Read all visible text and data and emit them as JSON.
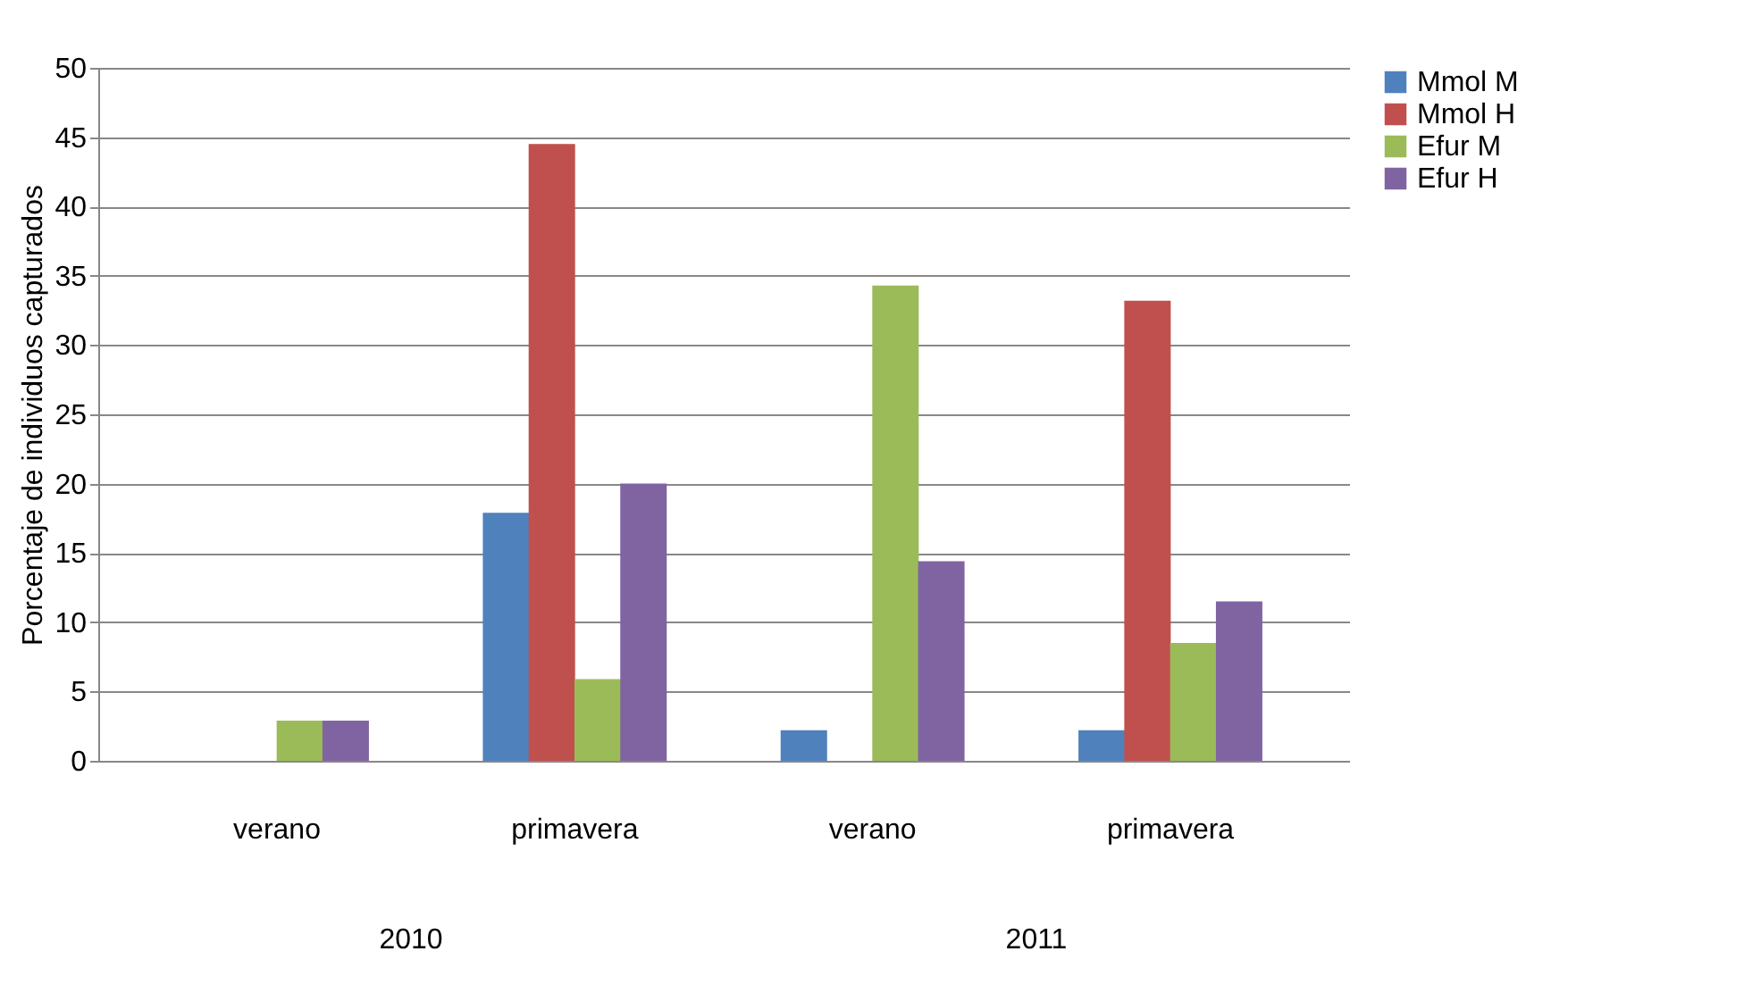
{
  "chart_data": {
    "type": "bar",
    "ylabel": "Porcentaje de individuos  capturados",
    "categories": [
      "verano",
      "primavera",
      "verano",
      "primavera"
    ],
    "annotations": [
      "2010",
      "2011"
    ],
    "series": [
      {
        "name": "Mmol M",
        "color": "#4f81bd",
        "values": [
          0,
          17.9,
          2.2,
          2.2
        ]
      },
      {
        "name": "Mmol H",
        "color": "#c0504d",
        "values": [
          0,
          44.5,
          0,
          33.2
        ]
      },
      {
        "name": "Efur M",
        "color": "#9bbb59",
        "values": [
          2.9,
          5.9,
          34.3,
          8.5
        ]
      },
      {
        "name": "Efur H",
        "color": "#8064a2",
        "values": [
          2.9,
          20.0,
          14.4,
          11.5
        ]
      }
    ],
    "ylim": [
      0,
      50
    ],
    "yticks": [
      0,
      5,
      10,
      15,
      20,
      25,
      30,
      35,
      40,
      45,
      50
    ],
    "grid": "y",
    "legend": "right"
  }
}
